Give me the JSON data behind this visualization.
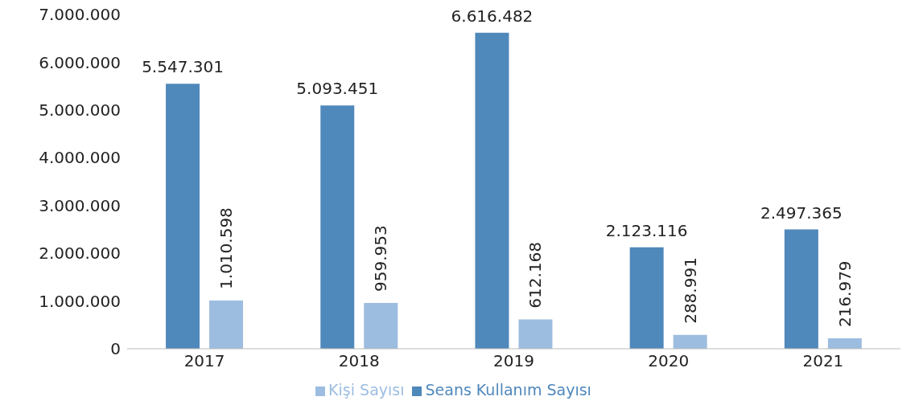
{
  "chart_data": {
    "type": "bar",
    "categories": [
      "2017",
      "2018",
      "2019",
      "2020",
      "2021"
    ],
    "series": [
      {
        "name": "Seans Kullanım Sayısı",
        "color": "#4f88bb",
        "values": [
          5547301,
          5093451,
          6616482,
          2123116,
          2497365
        ],
        "value_labels": [
          "5.547.301",
          "5.093.451",
          "6.616.482",
          "2.123.116",
          "2.497.365"
        ]
      },
      {
        "name": "Kişi Sayısı",
        "color": "#9dbde0",
        "values": [
          1010598,
          959953,
          612168,
          288991,
          216979
        ],
        "value_labels": [
          "1.010.598",
          "959.953",
          "612.168",
          "288.991",
          "216.979"
        ]
      }
    ],
    "ylim": [
      0,
      7000000
    ],
    "yticks": [
      {
        "value": 0,
        "label": "0"
      },
      {
        "value": 1000000,
        "label": "1.000.000"
      },
      {
        "value": 2000000,
        "label": "2.000.000"
      },
      {
        "value": 3000000,
        "label": "3.000.000"
      },
      {
        "value": 4000000,
        "label": "4.000.000"
      },
      {
        "value": 5000000,
        "label": "5.000.000"
      },
      {
        "value": 6000000,
        "label": "6.000.000"
      },
      {
        "value": 7000000,
        "label": "7.000.000"
      }
    ],
    "grid": false,
    "legend": "bottom"
  }
}
